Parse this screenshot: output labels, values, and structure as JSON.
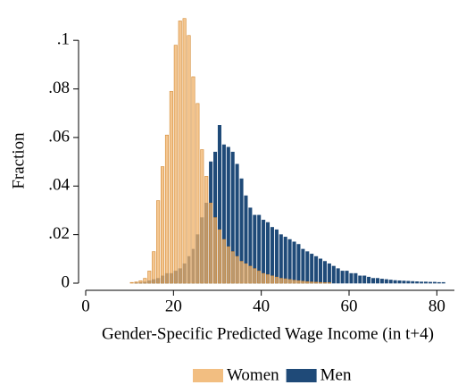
{
  "chart_data": {
    "type": "histogram",
    "x_label": "Gender-Specific Predicted Wage Income (in t+4)",
    "y_label": "Fraction",
    "bins": [
      10,
      11,
      12,
      13,
      14,
      15,
      16,
      17,
      18,
      19,
      20,
      21,
      22,
      23,
      24,
      25,
      26,
      27,
      28,
      29,
      30,
      31,
      32,
      33,
      34,
      35,
      36,
      37,
      38,
      39,
      40,
      41,
      42,
      43,
      44,
      45,
      46,
      47,
      48,
      49,
      50,
      51,
      52,
      53,
      54,
      55,
      56,
      57,
      58,
      59,
      60,
      61,
      62,
      63,
      64,
      65,
      66,
      67,
      68,
      69,
      70,
      71,
      72,
      73,
      74,
      75,
      76,
      77,
      78,
      79,
      80,
      81,
      82
    ],
    "series": [
      {
        "name": "Men",
        "color": "#1f4a78",
        "values": [
          0,
          0.0002,
          0.0003,
          0.0005,
          0.001,
          0.0015,
          0.002,
          0.003,
          0.004,
          0.004,
          0.005,
          0.006,
          0.008,
          0.011,
          0.014,
          0.02,
          0.027,
          0.033,
          0.05,
          0.054,
          0.065,
          0.057,
          0.056,
          0.054,
          0.049,
          0.043,
          0.036,
          0.031,
          0.028,
          0.028,
          0.026,
          0.025,
          0.023,
          0.022,
          0.02,
          0.019,
          0.018,
          0.017,
          0.016,
          0.014,
          0.013,
          0.012,
          0.011,
          0.01,
          0.009,
          0.008,
          0.007,
          0.006,
          0.005,
          0.005,
          0.004,
          0.004,
          0.003,
          0.003,
          0.0025,
          0.002,
          0.002,
          0.0017,
          0.0015,
          0.0013,
          0.0011,
          0.001,
          0.0009,
          0.0008,
          0.0007,
          0.0006,
          0.0005,
          0.0005,
          0.0004,
          0.0004,
          0.0003,
          0.0003
        ]
      },
      {
        "name": "Women",
        "color": "#f0b36b",
        "values": [
          0.0003,
          0.0005,
          0.001,
          0.002,
          0.005,
          0.013,
          0.034,
          0.048,
          0.061,
          0.079,
          0.098,
          0.108,
          0.109,
          0.102,
          0.085,
          0.074,
          0.055,
          0.044,
          0.033,
          0.027,
          0.022,
          0.018,
          0.015,
          0.013,
          0.011,
          0.009,
          0.008,
          0.007,
          0.006,
          0.005,
          0.004,
          0.0035,
          0.003,
          0.0025,
          0.002,
          0.0018,
          0.0015,
          0.0012,
          0.001,
          0.0008,
          0.0006,
          0.0005,
          0.0004,
          0.0003,
          0.0002,
          0.0002,
          0,
          0,
          0,
          0,
          0,
          0,
          0,
          0,
          0,
          0,
          0,
          0,
          0,
          0,
          0,
          0,
          0,
          0,
          0,
          0,
          0,
          0,
          0,
          0,
          0,
          0
        ]
      }
    ],
    "legend_order": [
      1,
      0
    ],
    "xlim": [
      0,
      84
    ],
    "xticks": [
      0,
      20,
      40,
      60,
      80
    ],
    "ylim": [
      0,
      0.11
    ],
    "yticks": [
      0,
      {
        "value": 0.02,
        "label": ".02"
      },
      {
        "value": 0.04,
        "label": ".04"
      },
      {
        "value": 0.06,
        "label": ".06"
      },
      {
        "value": 0.08,
        "label": ".08"
      },
      {
        "value": 0.1,
        "label": ".1"
      }
    ]
  }
}
